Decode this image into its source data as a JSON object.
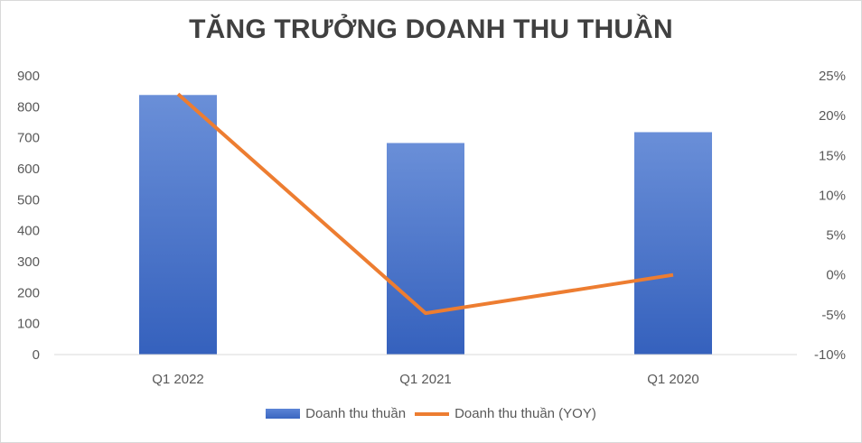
{
  "chart_data": {
    "type": "bar",
    "title": "TĂNG TRƯỞNG DOANH THU THUẦN",
    "categories": [
      "Q1 2022",
      "Q1 2021",
      "Q1 2020"
    ],
    "series": [
      {
        "name": "Doanh thu thuần",
        "type": "bar",
        "axis": "left",
        "values": [
          838,
          683,
          718
        ],
        "color": "#4472c4"
      },
      {
        "name": "Doanh thu thuần (YOY)",
        "type": "line",
        "axis": "right",
        "values": [
          22.7,
          -4.8,
          0.0
        ],
        "color": "#ed7d31"
      }
    ],
    "y_left": {
      "ylim": [
        0,
        900
      ],
      "ticks": [
        "0",
        "100",
        "200",
        "300",
        "400",
        "500",
        "600",
        "700",
        "800",
        "900"
      ]
    },
    "y_right": {
      "ylim": [
        -10,
        25
      ],
      "ticks": [
        "-10%",
        "-5%",
        "0%",
        "5%",
        "10%",
        "15%",
        "20%",
        "25%"
      ]
    },
    "grid": false,
    "legend": "bottom"
  }
}
